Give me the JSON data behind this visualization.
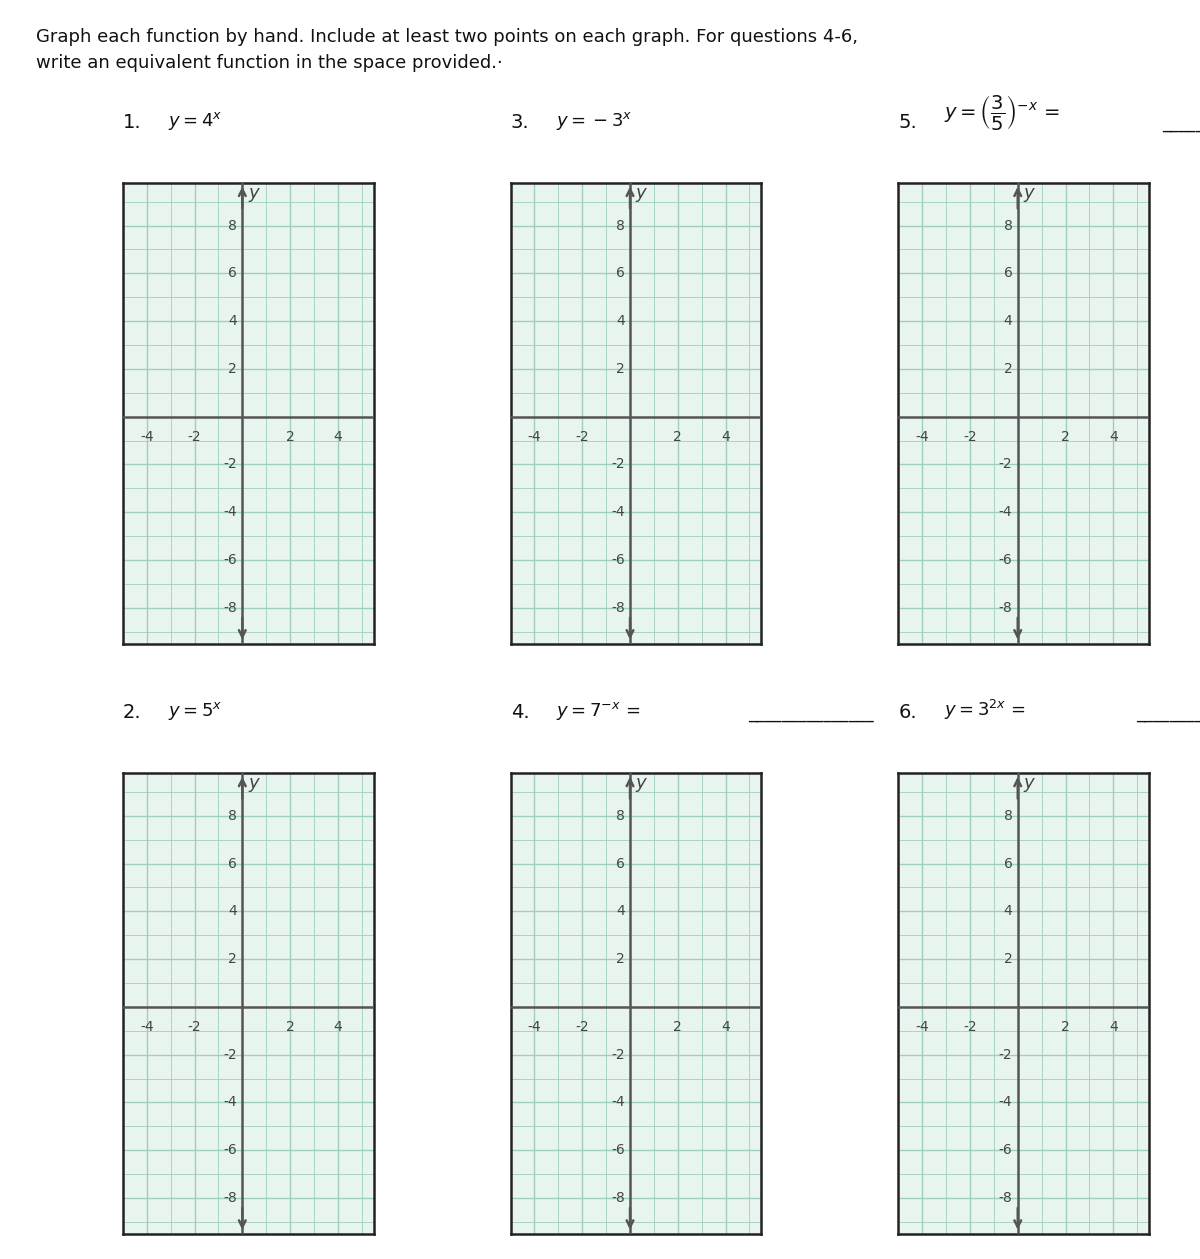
{
  "background_color": "#ffffff",
  "grid_bg": "#e8f5ee",
  "grid_color": "#9ecfb8",
  "axis_color": "#555555",
  "label_color": "#444444",
  "border_color": "#222222",
  "problems_row0": [
    {
      "num": "1.",
      "col": 0
    },
    {
      "num": "3.",
      "col": 1
    },
    {
      "num": "5.",
      "col": 2
    }
  ],
  "problems_row1": [
    {
      "num": "2.",
      "col": 0
    },
    {
      "num": "4.",
      "col": 1
    },
    {
      "num": "6.",
      "col": 2
    }
  ],
  "xlim": [
    -5.0,
    5.5
  ],
  "ylim": [
    -9.5,
    9.8
  ],
  "xticks": [
    -4,
    -2,
    2,
    4
  ],
  "yticks": [
    8,
    6,
    4,
    2,
    -2,
    -4,
    -6,
    -8
  ],
  "tick_fontsize": 10,
  "instr_line1": "Graph each function by hand. Include at least two points on each graph. For questions 4-6,",
  "instr_line2": "write an equivalent function in the space provided.·",
  "instr_fontsize": 13,
  "func_fontsize": 13,
  "num_fontsize": 14,
  "blank_line": "_______________"
}
